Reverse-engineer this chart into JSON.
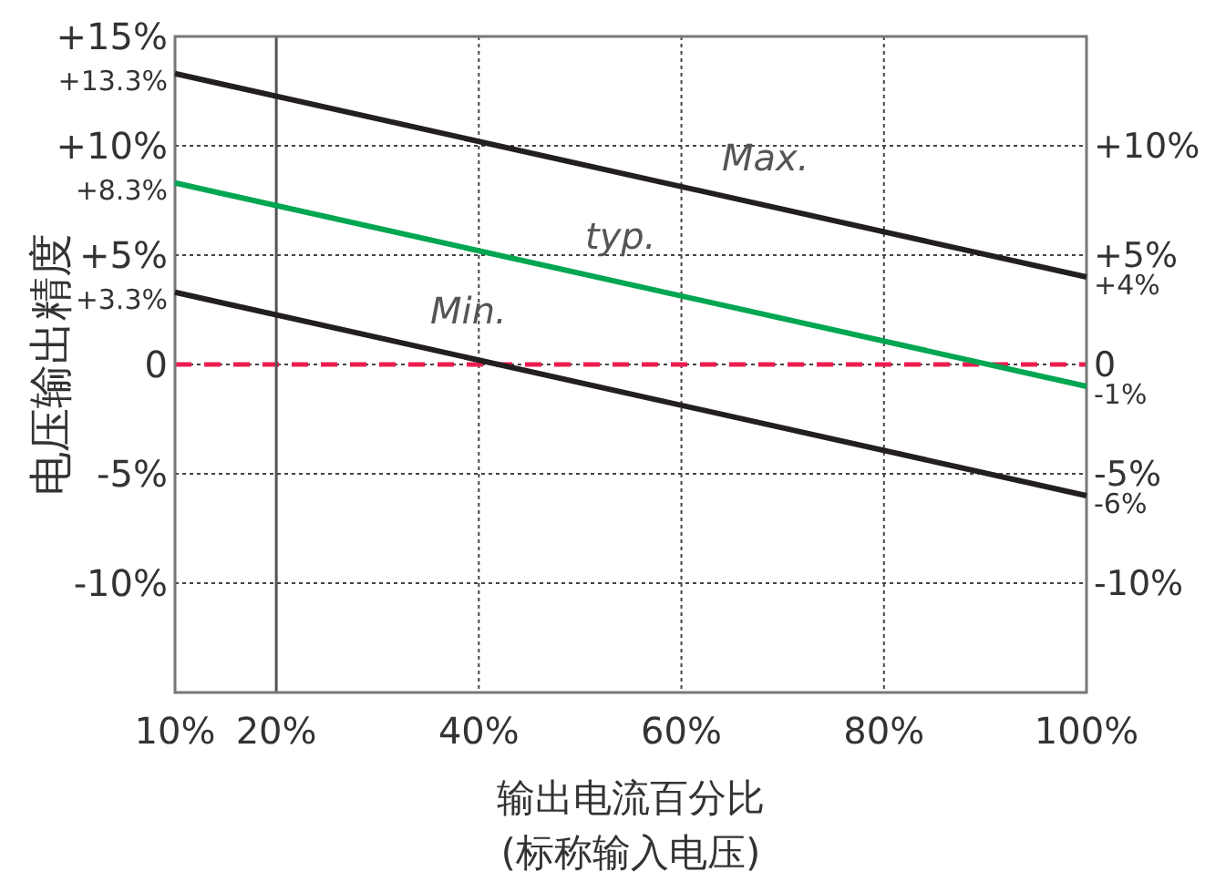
{
  "chart_data": {
    "type": "line",
    "xlabel": "输出电流百分比\n(标称输入电压)",
    "ylabel": "电压输出精度",
    "x": [
      10,
      100
    ],
    "xlim": [
      10,
      100
    ],
    "xticks": [
      {
        "value": 10,
        "label": "10%"
      },
      {
        "value": 20,
        "label": "20%"
      },
      {
        "value": 40,
        "label": "40%"
      },
      {
        "value": 60,
        "label": "60%"
      },
      {
        "value": 80,
        "label": "80%"
      },
      {
        "value": 100,
        "label": "100%"
      }
    ],
    "ylim": [
      -15,
      15
    ],
    "yticks": [
      {
        "value": 15,
        "label": "+15%"
      },
      {
        "value": 10,
        "label": "+10%"
      },
      {
        "value": 5,
        "label": "+5%"
      },
      {
        "value": 0,
        "label": "0"
      },
      {
        "value": -5,
        "label": "-5%"
      },
      {
        "value": -10,
        "label": "-10%"
      }
    ],
    "y2lim": [
      -15,
      15
    ],
    "y2ticks": [
      {
        "value": 10,
        "label": "+10%"
      },
      {
        "value": 5,
        "label": "+5%"
      },
      {
        "value": 0,
        "label": "0"
      },
      {
        "value": -5,
        "label": "-5%"
      },
      {
        "value": -10,
        "label": "-10%"
      }
    ],
    "series": [
      {
        "name": "Max.",
        "color": "#231f20",
        "values": [
          13.3,
          4
        ],
        "value_labels": [
          "+13.3%",
          "+4%"
        ]
      },
      {
        "name": "typ.",
        "color": "#00a651",
        "values": [
          8.3,
          -1
        ],
        "value_labels": [
          "+8.3%",
          "-1%"
        ]
      },
      {
        "name": "Min.",
        "color": "#231f20",
        "values": [
          3.3,
          -6
        ],
        "value_labels": [
          "+3.3%",
          "-6%"
        ]
      }
    ],
    "ref_lines": [
      {
        "axis": "y",
        "value": 0,
        "color": "#ed1c4f",
        "line_style": "dashed"
      },
      {
        "axis": "x",
        "value": 20,
        "color": "#555555",
        "line_style": "solid"
      }
    ],
    "grid": true,
    "line_style": "solid",
    "marker": "none"
  }
}
